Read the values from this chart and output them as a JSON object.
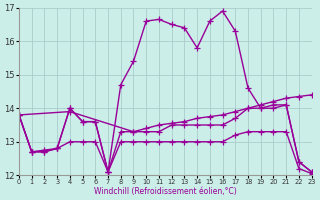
{
  "xlabel": "Windchill (Refroidissement éolien,°C)",
  "xlim": [
    0,
    23
  ],
  "ylim": [
    12,
    17
  ],
  "yticks": [
    12,
    13,
    14,
    15,
    16,
    17
  ],
  "xticks": [
    0,
    1,
    2,
    3,
    4,
    5,
    6,
    7,
    8,
    9,
    10,
    11,
    12,
    13,
    14,
    15,
    16,
    17,
    18,
    19,
    20,
    21,
    22,
    23
  ],
  "bg_color": "#cceee8",
  "grid_color": "#aacccc",
  "line_color": "#990099",
  "series": [
    {
      "x": [
        0,
        1,
        2,
        3,
        4,
        5,
        6,
        7,
        8,
        9,
        10,
        11,
        12,
        13,
        14,
        15,
        16,
        17,
        18,
        19,
        20,
        21,
        22,
        23
      ],
      "y": [
        13.8,
        12.7,
        12.7,
        12.8,
        14.0,
        13.6,
        13.6,
        12.1,
        14.7,
        15.4,
        16.6,
        16.65,
        16.5,
        16.4,
        15.8,
        16.6,
        16.9,
        16.3,
        14.6,
        14.0,
        14.1,
        14.1,
        12.4,
        12.1
      ]
    },
    {
      "x": [
        0,
        1,
        2,
        3,
        4,
        5,
        6,
        7,
        8,
        9,
        10,
        11,
        12,
        13,
        14,
        15,
        16,
        17,
        18,
        19,
        20,
        21,
        22,
        23
      ],
      "y": [
        13.8,
        12.7,
        12.7,
        12.8,
        14.0,
        13.6,
        13.6,
        12.1,
        13.3,
        13.3,
        13.3,
        13.3,
        13.5,
        13.5,
        13.5,
        13.5,
        13.5,
        13.7,
        14.0,
        14.0,
        14.0,
        14.1,
        12.4,
        12.1
      ]
    },
    {
      "x": [
        0,
        4,
        9,
        10,
        11,
        12,
        13,
        14,
        15,
        16,
        17,
        18,
        19,
        20,
        21,
        22,
        23
      ],
      "y": [
        13.8,
        13.9,
        13.3,
        13.4,
        13.5,
        13.55,
        13.6,
        13.7,
        13.75,
        13.8,
        13.9,
        14.0,
        14.1,
        14.2,
        14.3,
        14.35,
        14.4
      ]
    },
    {
      "x": [
        0,
        1,
        2,
        3,
        4,
        5,
        6,
        7,
        8,
        9,
        10,
        11,
        12,
        13,
        14,
        15,
        16,
        17,
        18,
        19,
        20,
        21,
        22,
        23
      ],
      "y": [
        13.8,
        12.7,
        12.75,
        12.8,
        13.0,
        13.0,
        13.0,
        12.1,
        13.0,
        13.0,
        13.0,
        13.0,
        13.0,
        13.0,
        13.0,
        13.0,
        13.0,
        13.2,
        13.3,
        13.3,
        13.3,
        13.3,
        12.2,
        12.05
      ]
    }
  ],
  "line_width": 1.0,
  "marker": "+",
  "marker_size": 4
}
